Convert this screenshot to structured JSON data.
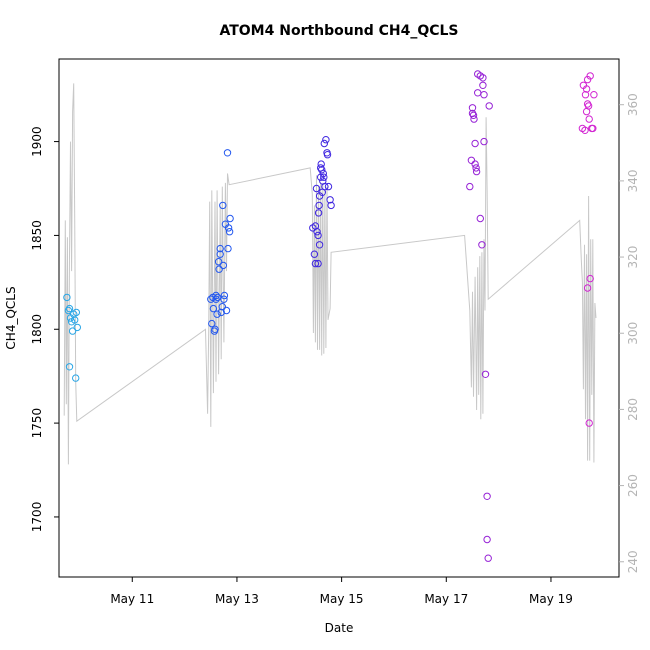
{
  "chart_data": {
    "type": "scatter",
    "title": "ATOM4 Northbound CH4_QCLS",
    "xlabel": "Date",
    "ylabel": "CH4_QCLS",
    "xlim": [
      9.6,
      20.3
    ],
    "ylim": [
      1668,
      1944
    ],
    "y2lim": [
      236,
      372
    ],
    "x_ticks": [
      {
        "value": 11,
        "label": "May 11"
      },
      {
        "value": 13,
        "label": "May 13"
      },
      {
        "value": 15,
        "label": "May 15"
      },
      {
        "value": 17,
        "label": "May 17"
      },
      {
        "value": 19,
        "label": "May 19"
      }
    ],
    "y_ticks": [
      1700,
      1750,
      1800,
      1850,
      1900
    ],
    "y2_ticks": [
      240,
      260,
      280,
      300,
      320,
      340,
      360
    ],
    "grid": false,
    "legend": "none",
    "colors": {
      "trace": "#c8c8c8",
      "right_axis": "#b4b4b4",
      "group1": "#2aa6e6",
      "group2": "#2358ef",
      "group3": "#3f26e0",
      "group4": "#9622d6",
      "group5": "#d226d2"
    },
    "series": [
      {
        "color_key": "group1",
        "points": [
          [
            9.75,
            1817
          ],
          [
            9.78,
            1810
          ],
          [
            9.8,
            1811
          ],
          [
            9.82,
            1806
          ],
          [
            9.8,
            1780
          ],
          [
            9.84,
            1804
          ],
          [
            9.86,
            1799
          ],
          [
            9.88,
            1808
          ],
          [
            9.9,
            1805
          ],
          [
            9.93,
            1809
          ],
          [
            9.95,
            1801
          ],
          [
            9.92,
            1774
          ]
        ]
      },
      {
        "color_key": "group2",
        "points": [
          [
            12.5,
            1816
          ],
          [
            12.52,
            1803
          ],
          [
            12.54,
            1817
          ],
          [
            12.55,
            1811
          ],
          [
            12.57,
            1799
          ],
          [
            12.58,
            1800
          ],
          [
            12.6,
            1818
          ],
          [
            12.6,
            1816
          ],
          [
            12.62,
            1808
          ],
          [
            12.63,
            1817
          ],
          [
            12.65,
            1836
          ],
          [
            12.66,
            1832
          ],
          [
            12.68,
            1840
          ],
          [
            12.68,
            1843
          ],
          [
            12.7,
            1809
          ],
          [
            12.72,
            1812
          ],
          [
            12.73,
            1866
          ],
          [
            12.74,
            1834
          ],
          [
            12.75,
            1816
          ],
          [
            12.76,
            1818
          ],
          [
            12.78,
            1856
          ],
          [
            12.8,
            1810
          ],
          [
            12.82,
            1894
          ],
          [
            12.83,
            1843
          ],
          [
            12.84,
            1854
          ],
          [
            12.86,
            1852
          ],
          [
            12.87,
            1859
          ]
        ]
      },
      {
        "color_key": "group3",
        "points": [
          [
            14.45,
            1854
          ],
          [
            14.48,
            1840
          ],
          [
            14.5,
            1855
          ],
          [
            14.5,
            1835
          ],
          [
            14.52,
            1875
          ],
          [
            14.53,
            1852
          ],
          [
            14.55,
            1835
          ],
          [
            14.55,
            1850
          ],
          [
            14.56,
            1862
          ],
          [
            14.57,
            1866
          ],
          [
            14.58,
            1871
          ],
          [
            14.58,
            1845
          ],
          [
            14.6,
            1881
          ],
          [
            14.6,
            1886
          ],
          [
            14.61,
            1888
          ],
          [
            14.62,
            1885
          ],
          [
            14.63,
            1873
          ],
          [
            14.64,
            1879
          ],
          [
            14.65,
            1883
          ],
          [
            14.66,
            1881
          ],
          [
            14.67,
            1899
          ],
          [
            14.68,
            1876
          ],
          [
            14.7,
            1901
          ],
          [
            14.72,
            1894
          ],
          [
            14.73,
            1893
          ],
          [
            14.75,
            1876
          ],
          [
            14.78,
            1869
          ],
          [
            14.8,
            1866
          ]
        ]
      },
      {
        "color_key": "group4",
        "points": [
          [
            17.45,
            1876
          ],
          [
            17.48,
            1890
          ],
          [
            17.5,
            1918
          ],
          [
            17.5,
            1915
          ],
          [
            17.52,
            1914
          ],
          [
            17.53,
            1912
          ],
          [
            17.55,
            1888
          ],
          [
            17.55,
            1899
          ],
          [
            17.57,
            1886
          ],
          [
            17.58,
            1884
          ],
          [
            17.6,
            1926
          ],
          [
            17.6,
            1936
          ],
          [
            17.65,
            1935
          ],
          [
            17.65,
            1859
          ],
          [
            17.68,
            1845
          ],
          [
            17.7,
            1930
          ],
          [
            17.7,
            1934
          ],
          [
            17.72,
            1925
          ],
          [
            17.72,
            1900
          ],
          [
            17.75,
            1776
          ],
          [
            17.78,
            1711
          ],
          [
            17.78,
            1688
          ],
          [
            17.8,
            1678
          ],
          [
            17.82,
            1919
          ]
        ]
      },
      {
        "color_key": "group5",
        "points": [
          [
            19.6,
            1907
          ],
          [
            19.62,
            1930
          ],
          [
            19.65,
            1906
          ],
          [
            19.66,
            1925
          ],
          [
            19.68,
            1916
          ],
          [
            19.68,
            1928
          ],
          [
            19.7,
            1920
          ],
          [
            19.7,
            1933
          ],
          [
            19.72,
            1919
          ],
          [
            19.73,
            1912
          ],
          [
            19.75,
            1935
          ],
          [
            19.78,
            1907
          ],
          [
            19.8,
            1907
          ],
          [
            19.82,
            1925
          ],
          [
            19.7,
            1822
          ],
          [
            19.75,
            1827
          ],
          [
            19.73,
            1750
          ]
        ]
      }
    ],
    "trace": [
      [
        9.7,
        1754
      ],
      [
        9.72,
        1858
      ],
      [
        9.74,
        1760
      ],
      [
        9.76,
        1849
      ],
      [
        9.78,
        1728
      ],
      [
        9.8,
        1840
      ],
      [
        9.82,
        1900
      ],
      [
        9.84,
        1831
      ],
      [
        9.86,
        1916
      ],
      [
        9.88,
        1931
      ],
      [
        9.9,
        1860
      ],
      [
        9.92,
        1772
      ],
      [
        9.94,
        1751
      ],
      [
        12.4,
        1800
      ],
      [
        12.44,
        1755
      ],
      [
        12.46,
        1800
      ],
      [
        12.48,
        1868
      ],
      [
        12.5,
        1748
      ],
      [
        12.52,
        1874
      ],
      [
        12.55,
        1766
      ],
      [
        12.58,
        1868
      ],
      [
        12.6,
        1772
      ],
      [
        12.62,
        1874
      ],
      [
        12.65,
        1776
      ],
      [
        12.68,
        1866
      ],
      [
        12.7,
        1784
      ],
      [
        12.72,
        1876
      ],
      [
        12.75,
        1793
      ],
      [
        12.78,
        1878
      ],
      [
        12.8,
        1831
      ],
      [
        12.82,
        1883
      ],
      [
        12.85,
        1877
      ],
      [
        14.4,
        1886
      ],
      [
        14.44,
        1872
      ],
      [
        14.46,
        1798
      ],
      [
        14.48,
        1866
      ],
      [
        14.5,
        1793
      ],
      [
        14.52,
        1882
      ],
      [
        14.54,
        1789
      ],
      [
        14.56,
        1876
      ],
      [
        14.58,
        1789
      ],
      [
        14.6,
        1878
      ],
      [
        14.62,
        1786
      ],
      [
        14.64,
        1878
      ],
      [
        14.66,
        1787
      ],
      [
        14.68,
        1874
      ],
      [
        14.7,
        1790
      ],
      [
        14.72,
        1876
      ],
      [
        14.74,
        1805
      ],
      [
        14.78,
        1811
      ],
      [
        14.8,
        1841
      ],
      [
        17.35,
        1850
      ],
      [
        17.45,
        1810
      ],
      [
        17.48,
        1769
      ],
      [
        17.5,
        1820
      ],
      [
        17.52,
        1764
      ],
      [
        17.55,
        1828
      ],
      [
        17.58,
        1757
      ],
      [
        17.6,
        1833
      ],
      [
        17.62,
        1765
      ],
      [
        17.64,
        1839
      ],
      [
        17.66,
        1752
      ],
      [
        17.68,
        1841
      ],
      [
        17.7,
        1755
      ],
      [
        17.72,
        1848
      ],
      [
        17.74,
        1810
      ],
      [
        17.76,
        1913
      ],
      [
        17.78,
        1875
      ],
      [
        17.8,
        1816
      ],
      [
        19.55,
        1858
      ],
      [
        19.58,
        1837
      ],
      [
        19.6,
        1825
      ],
      [
        19.62,
        1768
      ],
      [
        19.64,
        1845
      ],
      [
        19.66,
        1752
      ],
      [
        19.68,
        1840
      ],
      [
        19.7,
        1730
      ],
      [
        19.72,
        1871
      ],
      [
        19.74,
        1730
      ],
      [
        19.76,
        1848
      ],
      [
        19.78,
        1765
      ],
      [
        19.8,
        1848
      ],
      [
        19.82,
        1729
      ],
      [
        19.84,
        1814
      ],
      [
        19.86,
        1806
      ]
    ]
  }
}
